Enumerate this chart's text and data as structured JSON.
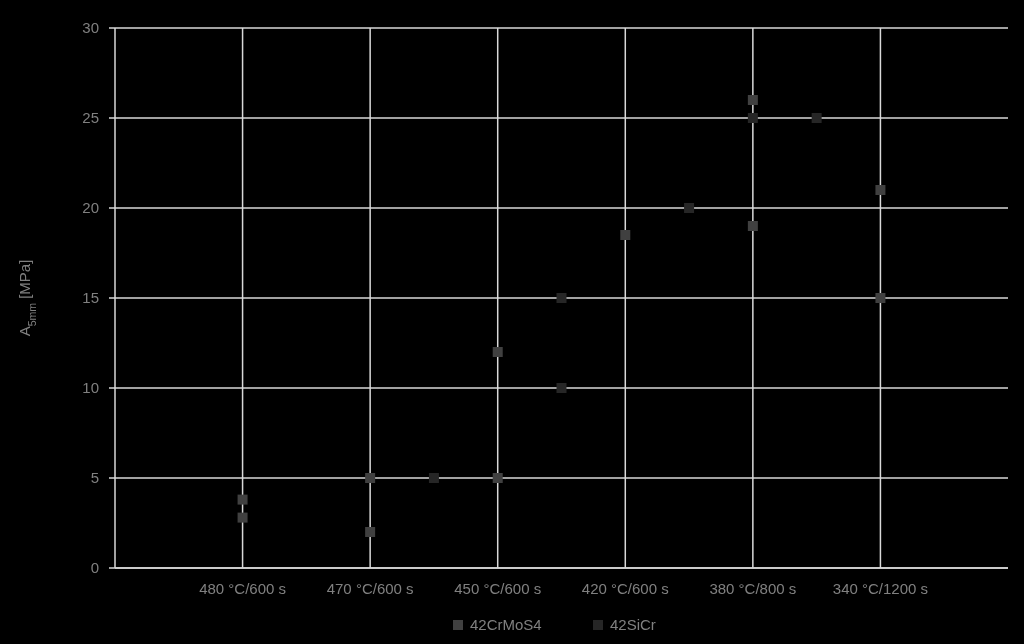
{
  "chart_data": {
    "type": "scatter",
    "ylabel": "A$_{5mm}$ [MPa]",
    "categories": [
      null,
      "480 °C/600 s",
      null,
      "470 °C/600 s",
      null,
      "450 °C/600 s",
      null,
      "420 °C/600 s",
      null,
      "380 °C/800 s",
      null,
      "340 °C/1200 s",
      null
    ],
    "ylim": [
      0,
      30
    ],
    "yticks": [
      0,
      5,
      10,
      15,
      20,
      25,
      30
    ],
    "grid": true,
    "legend": "bottom",
    "marker": "square",
    "series": [
      {
        "name": "42CrMoS4",
        "color": "#404040",
        "values": [
          null,
          3.8,
          null,
          5,
          null,
          12,
          null,
          18.5,
          null,
          26,
          null,
          21,
          null
        ]
      },
      {
        "color": "#404040",
        "values": [
          null,
          2.8,
          null,
          2,
          null,
          5,
          null,
          null,
          null,
          19,
          null,
          15,
          null
        ]
      },
      {
        "name": "42SiCr",
        "color": "#262626",
        "values": [
          null,
          null,
          null,
          null,
          5,
          null,
          15,
          null,
          20,
          25,
          25,
          null,
          null
        ]
      },
      {
        "color": "#262626",
        "values": [
          null,
          null,
          null,
          null,
          null,
          null,
          10,
          null,
          null,
          null,
          null,
          null,
          null
        ]
      }
    ]
  }
}
